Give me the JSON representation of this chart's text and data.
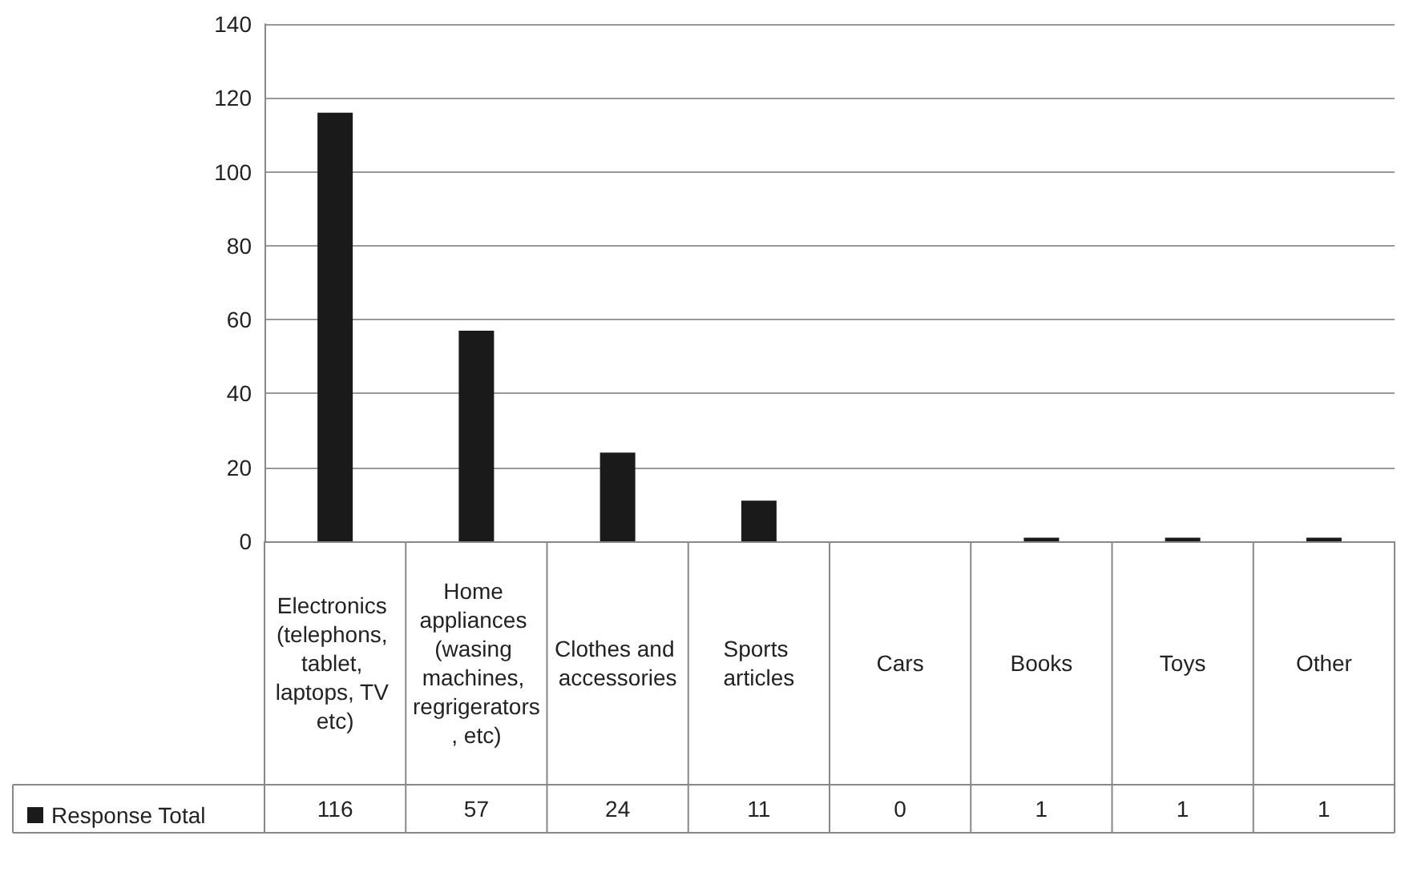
{
  "chart_data": {
    "type": "bar",
    "categories": [
      "Electronics (telephons, tablet, laptops, TV etc)",
      "Home appliances (wasing machines, regrigerators, etc)",
      "Clothes and accessories",
      "Sports articles",
      "Cars",
      "Books",
      "Toys",
      "Other"
    ],
    "series": [
      {
        "name": "Response Total",
        "color": "#1a1a1a",
        "values": [
          116,
          57,
          24,
          11,
          0,
          1,
          1,
          1
        ]
      }
    ],
    "ylim": [
      0,
      140
    ],
    "yticks": [
      0,
      20,
      40,
      60,
      80,
      100,
      120,
      140
    ],
    "grid": "y",
    "legend": "bottom left",
    "data_labels": true
  }
}
